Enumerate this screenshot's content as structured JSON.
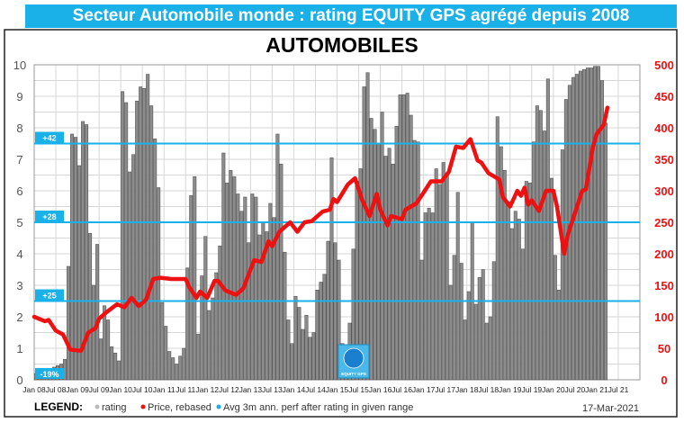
{
  "header": {
    "title": "Secteur Automobile monde : rating EQUITY GPS agrégé depuis 2008"
  },
  "chart_data": {
    "type": "bar+line",
    "title": "AUTOMOBILES",
    "left_axis": {
      "ylim": [
        0,
        10
      ],
      "ticks": [
        "0",
        "1",
        "2",
        "3",
        "4",
        "5",
        "6",
        "7",
        "8",
        "9",
        "10"
      ],
      "color": "#555555"
    },
    "right_axis": {
      "ylim": [
        0,
        500
      ],
      "ticks": [
        "0",
        "50",
        "100",
        "150",
        "200",
        "250",
        "300",
        "350",
        "400",
        "450",
        "500"
      ],
      "color": "#ee1111"
    },
    "x_ticks": [
      "Jan 08",
      "Jul 08",
      "Jan 09",
      "Jul 09",
      "Jan 10",
      "Jul 10",
      "Jan 11",
      "Jul 11",
      "Jan 12",
      "Jul 12",
      "Jan 13",
      "Jul 13",
      "Jan 14",
      "Jul 14",
      "Jan 15",
      "Jul 15",
      "Jan 16",
      "Jul 16",
      "Jan 17",
      "Jul 17",
      "Jan 18",
      "Jul 18",
      "Jan 19",
      "Jul 19",
      "Jan 20",
      "Jul 20",
      "Jan 21",
      "Jul 21"
    ],
    "x_range": [
      "2008-01",
      "2022-01"
    ],
    "grid": true,
    "rating": {
      "name": "rating",
      "color": "#8c8c8c",
      "start": "2008-01",
      "frequency": "monthly",
      "values": [
        0.2,
        0.25,
        0.3,
        0.3,
        0.35,
        0.4,
        0.45,
        0.5,
        0.65,
        3.6,
        7.8,
        7.7,
        6.8,
        8.2,
        8.1,
        4.65,
        3.0,
        4.3,
        1.3,
        2.35,
        1.9,
        1.05,
        0.85,
        0.6,
        9.15,
        8.8,
        6.6,
        7.15,
        8.85,
        9.3,
        9.25,
        9.7,
        8.7,
        7.65,
        6.1,
        2.45,
        1.7,
        0.9,
        0.7,
        0.5,
        0.75,
        1.0,
        3.55,
        5.85,
        6.45,
        1.45,
        3.3,
        4.55,
        2.2,
        2.6,
        3.4,
        4.25,
        7.2,
        6.25,
        6.65,
        6.45,
        5.9,
        5.35,
        5.8,
        4.35,
        5.9,
        5.8,
        4.6,
        5.0,
        4.7,
        5.6,
        5.15,
        7.8,
        6.85,
        4.05,
        1.9,
        1.15,
        2.65,
        2.3,
        1.6,
        2.05,
        1.35,
        1.5,
        2.85,
        3.1,
        3.35,
        4.4,
        7.05,
        4.35,
        3.8,
        1.15,
        0.2,
        1.8,
        4.15,
        6.3,
        6.7,
        9.3,
        9.75,
        8.3,
        7.95,
        7.5,
        8.5,
        7.1,
        7.35,
        6.85,
        8.05,
        9.05,
        9.05,
        9.1,
        8.4,
        7.6,
        7.55,
        3.8,
        5.3,
        5.45,
        5.3,
        6.7,
        6.2,
        6.9,
        6.5,
        3.0,
        3.95,
        5.95,
        3.7,
        1.9,
        2.8,
        5.0,
        2.4,
        3.25,
        3.5,
        1.8,
        2.0,
        3.75,
        8.35,
        7.4,
        6.65,
        5.65,
        4.8,
        5.35,
        5.1,
        4.15,
        6.3,
        6.25,
        7.55,
        8.7,
        8.55,
        7.9,
        9.55,
        6.4,
        3.95,
        2.85,
        7.3,
        8.9,
        9.35,
        9.6,
        9.7,
        9.8,
        9.85,
        9.9,
        9.9,
        9.95,
        9.95,
        9.5,
        8.15
      ]
    },
    "price": {
      "name": "Price, rebased",
      "color": "#ee1111",
      "points": [
        [
          "2008-01",
          100
        ],
        [
          "2008-04",
          93
        ],
        [
          "2008-05",
          95
        ],
        [
          "2008-07",
          78
        ],
        [
          "2008-09",
          72
        ],
        [
          "2008-11",
          48
        ],
        [
          "2009-02",
          46
        ],
        [
          "2009-04",
          75
        ],
        [
          "2009-06",
          82
        ],
        [
          "2009-07",
          97
        ],
        [
          "2009-09",
          107
        ],
        [
          "2009-12",
          120
        ],
        [
          "2010-02",
          115
        ],
        [
          "2010-04",
          130
        ],
        [
          "2010-06",
          117
        ],
        [
          "2010-08",
          127
        ],
        [
          "2010-10",
          160
        ],
        [
          "2010-12",
          162
        ],
        [
          "2011-03",
          160
        ],
        [
          "2011-05",
          160
        ],
        [
          "2011-07",
          160
        ],
        [
          "2011-08",
          147
        ],
        [
          "2011-10",
          130
        ],
        [
          "2011-11",
          140
        ],
        [
          "2012-01",
          130
        ],
        [
          "2012-03",
          157
        ],
        [
          "2012-04",
          157
        ],
        [
          "2012-06",
          142
        ],
        [
          "2012-08",
          137
        ],
        [
          "2012-09",
          135
        ],
        [
          "2012-11",
          145
        ],
        [
          "2013-02",
          190
        ],
        [
          "2013-04",
          187
        ],
        [
          "2013-06",
          220
        ],
        [
          "2013-07",
          212
        ],
        [
          "2013-09",
          235
        ],
        [
          "2013-12",
          250
        ],
        [
          "2014-02",
          235
        ],
        [
          "2014-04",
          250
        ],
        [
          "2014-06",
          252
        ],
        [
          "2014-09",
          267
        ],
        [
          "2014-11",
          270
        ],
        [
          "2014-12",
          287
        ],
        [
          "2015-01",
          282
        ],
        [
          "2015-04",
          310
        ],
        [
          "2015-06",
          320
        ],
        [
          "2015-08",
          285
        ],
        [
          "2015-10",
          260
        ],
        [
          "2015-12",
          295
        ],
        [
          "2016-01",
          270
        ],
        [
          "2016-03",
          245
        ],
        [
          "2016-04",
          260
        ],
        [
          "2016-07",
          255
        ],
        [
          "2016-08",
          270
        ],
        [
          "2016-11",
          280
        ],
        [
          "2017-01",
          297
        ],
        [
          "2017-03",
          315
        ],
        [
          "2017-06",
          315
        ],
        [
          "2017-08",
          330
        ],
        [
          "2017-10",
          370
        ],
        [
          "2017-12",
          368
        ],
        [
          "2018-02",
          382
        ],
        [
          "2018-04",
          348
        ],
        [
          "2018-05",
          345
        ],
        [
          "2018-07",
          328
        ],
        [
          "2018-10",
          318
        ],
        [
          "2018-11",
          290
        ],
        [
          "2019-01",
          275
        ],
        [
          "2019-03",
          300
        ],
        [
          "2019-04",
          292
        ],
        [
          "2019-05",
          305
        ],
        [
          "2019-06",
          278
        ],
        [
          "2019-07",
          285
        ],
        [
          "2019-09",
          268
        ],
        [
          "2019-11",
          300
        ],
        [
          "2020-01",
          300
        ],
        [
          "2020-02",
          275
        ],
        [
          "2020-04",
          200
        ],
        [
          "2020-05",
          230
        ],
        [
          "2020-09",
          300
        ],
        [
          "2020-10",
          302
        ],
        [
          "2020-12",
          370
        ],
        [
          "2021-01",
          390
        ],
        [
          "2021-03",
          405
        ],
        [
          "2021-04",
          432
        ]
      ]
    },
    "ranges": {
      "name": "Avg 3m ann. perf after rating in given range",
      "color": "#1ab0e8",
      "lines": [
        {
          "rating": 7.5,
          "label": "+42"
        },
        {
          "rating": 5,
          "label": "+28"
        },
        {
          "rating": 2.5,
          "label": "+25"
        },
        {
          "rating": 0,
          "label": "-19%"
        }
      ]
    },
    "logo_text": "EQUITY GPS"
  },
  "legend": {
    "title": "LEGEND:",
    "rating": "rating",
    "price": "Price, rebased",
    "avg": "Avg 3m ann. perf after rating in given range"
  },
  "date": "17-Mar-2021"
}
